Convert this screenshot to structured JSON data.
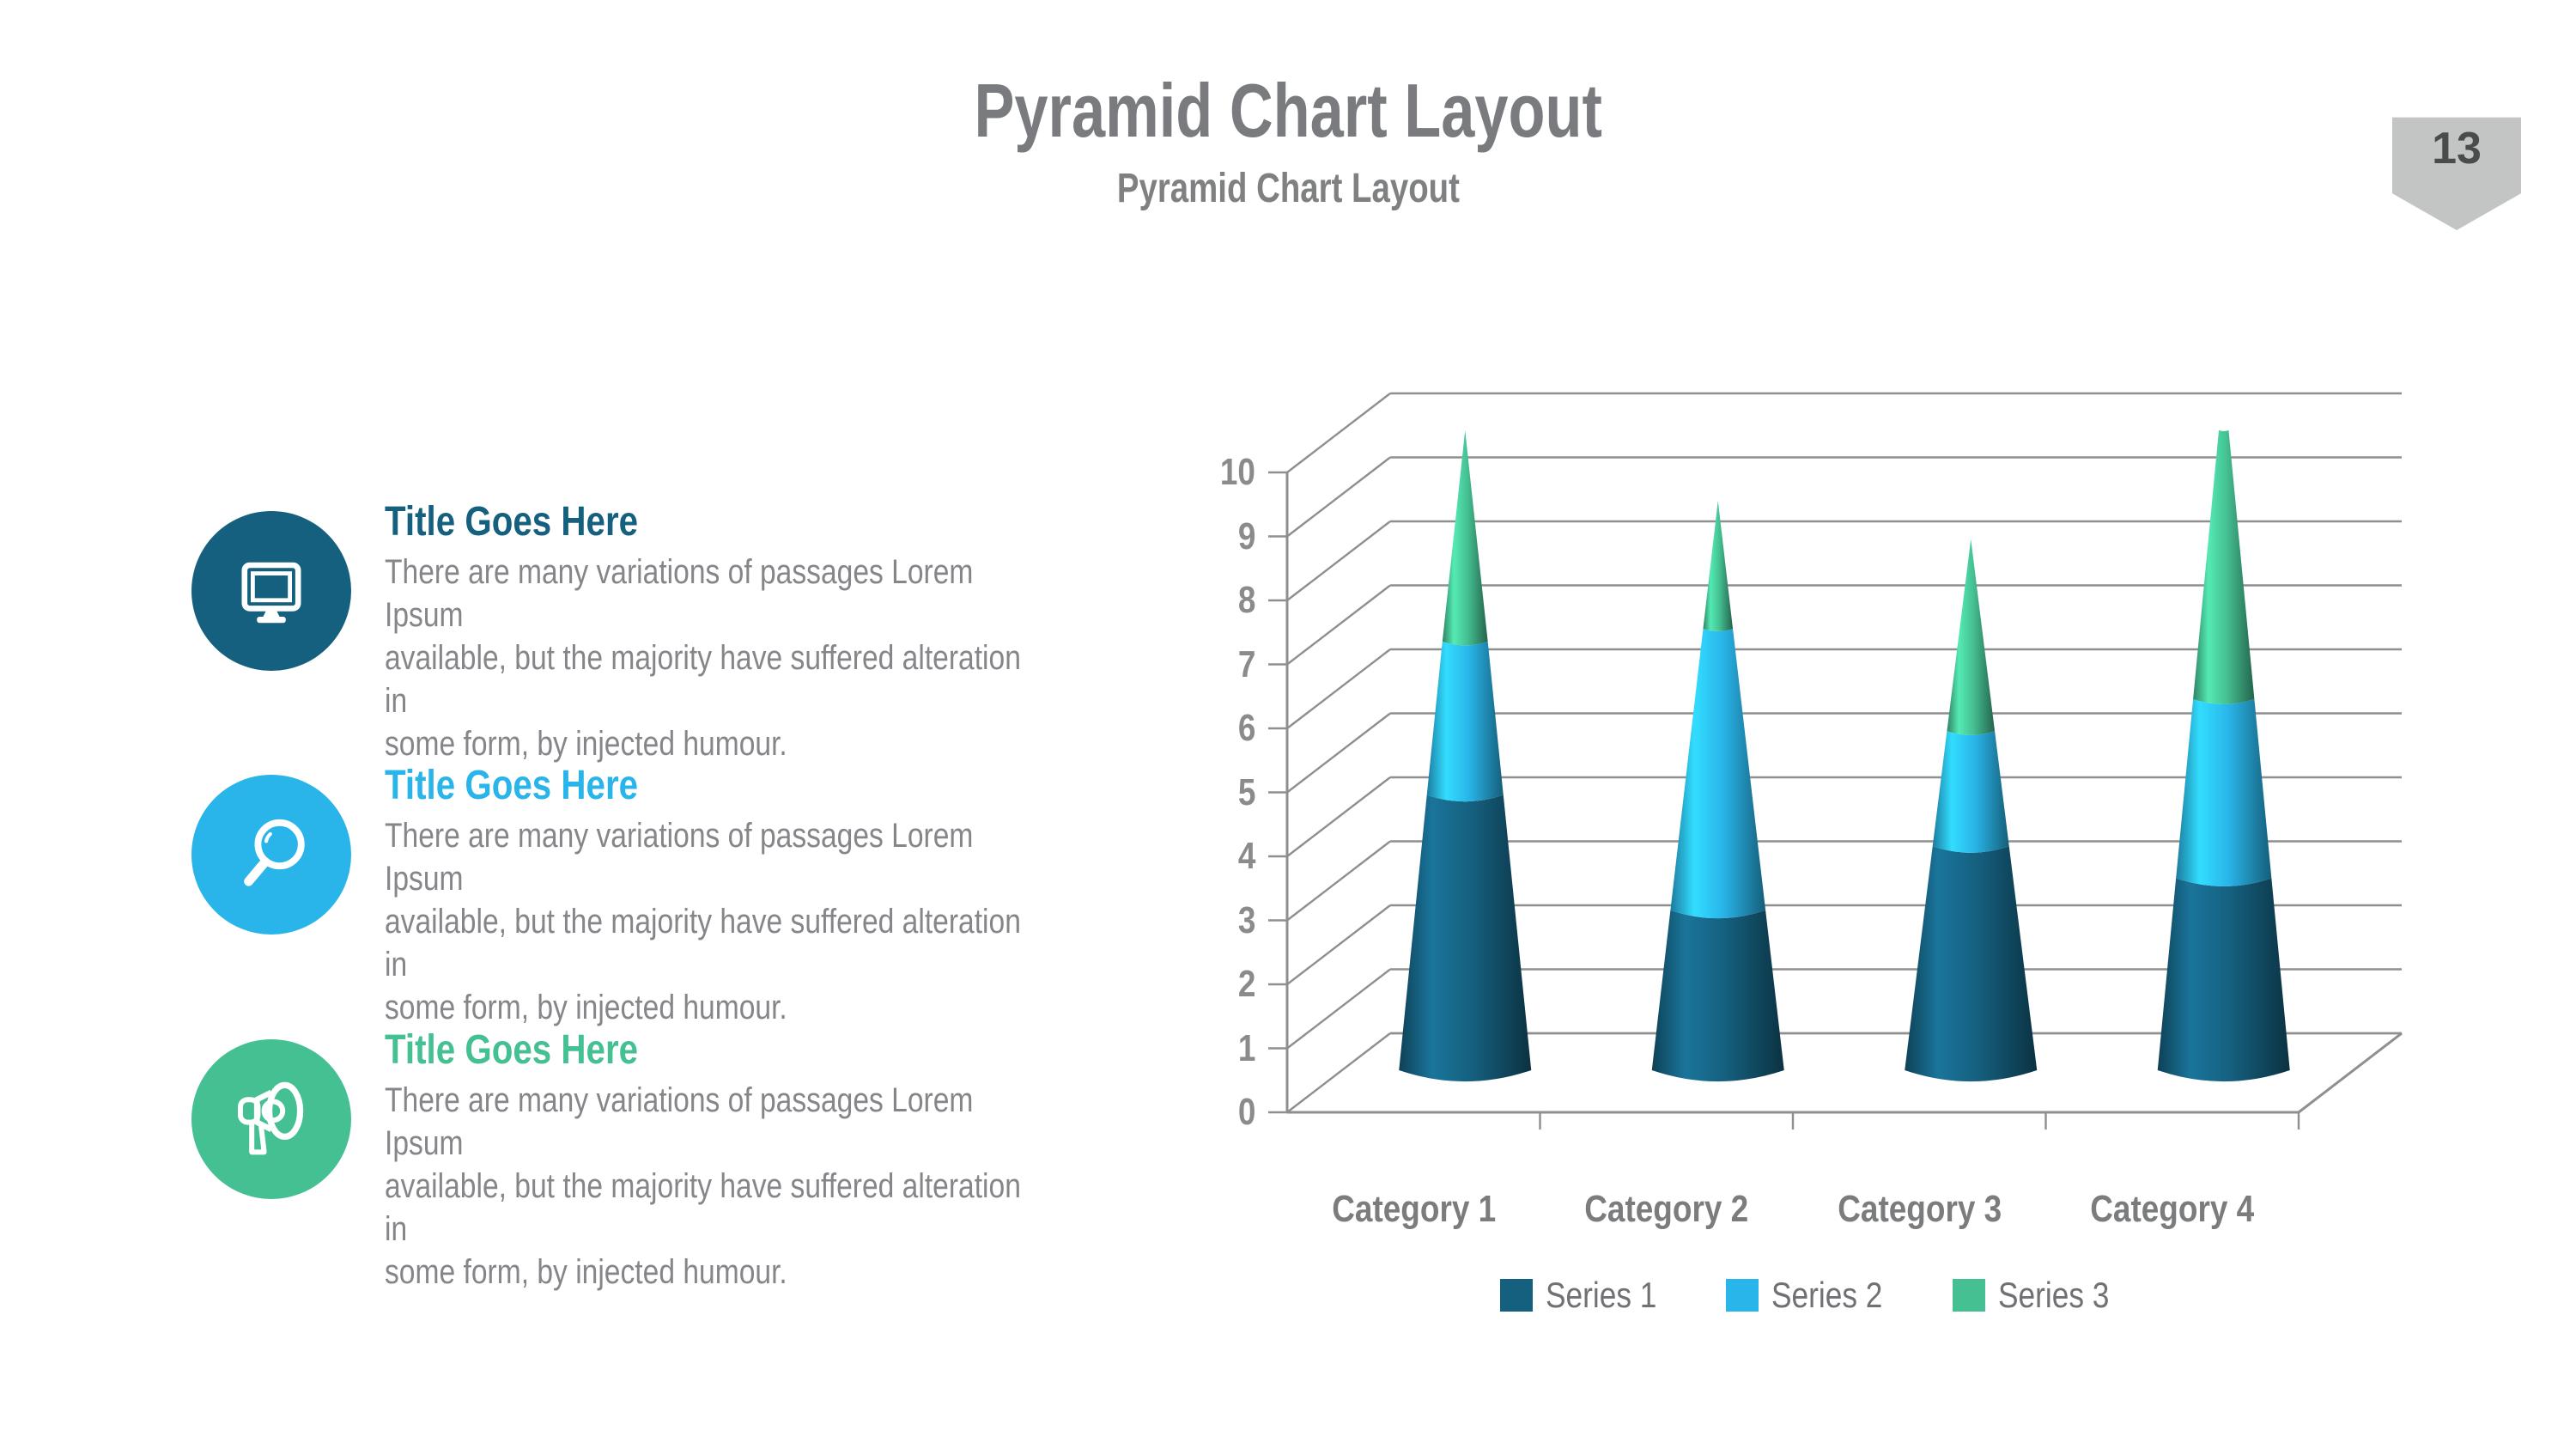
{
  "slide": {
    "title": "Pyramid Chart Layout",
    "subtitle": "Pyramid Chart Layout",
    "page_number": "13"
  },
  "items": [
    {
      "icon": "monitor",
      "color": "#15607f",
      "title": "Title Goes Here",
      "body_lines": [
        "There are many variations of passages Lorem Ipsum",
        "available, but the majority have suffered alteration in",
        "some form, by injected humour."
      ]
    },
    {
      "icon": "magnifier",
      "color": "#29b5e9",
      "title": "Title Goes Here",
      "body_lines": [
        "There are many variations of passages Lorem Ipsum",
        "available, but the majority have suffered alteration in",
        "some form, by injected humour."
      ]
    },
    {
      "icon": "megaphone",
      "color": "#45c093",
      "title": "Title Goes Here",
      "body_lines": [
        "There are many variations of passages Lorem Ipsum",
        "available, but the majority have suffered alteration in",
        "some form, by injected humour."
      ]
    }
  ],
  "chart_data": {
    "type": "bar",
    "variant": "3d-stacked-cone",
    "title": "",
    "xlabel": "",
    "ylabel": "",
    "categories": [
      "Category 1",
      "Category 2",
      "Category 3",
      "Category 4"
    ],
    "series": [
      {
        "name": "Series 1",
        "color": "#15607f",
        "values": [
          4.3,
          2.5,
          3.5,
          3.0
        ]
      },
      {
        "name": "Series 2",
        "color": "#29b5e9",
        "values": [
          2.4,
          4.4,
          1.8,
          2.8
        ]
      },
      {
        "name": "Series 3",
        "color": "#45c093",
        "values": [
          3.5,
          2.0,
          3.0,
          5.0
        ]
      }
    ],
    "ylim": [
      0,
      10
    ],
    "ytick_step": 1,
    "yticks": [
      0,
      1,
      2,
      3,
      4,
      5,
      6,
      7,
      8,
      9,
      10
    ],
    "grid": true,
    "legend_position": "bottom",
    "gridline_color": "#8f8f8f",
    "axis_label_color": "#8b8b8b"
  },
  "palette": {
    "title_gray": "#7a7b7e",
    "body_gray": "#85868a",
    "badge_bg": "#c3c4c4",
    "badge_text": "#4b4b4d"
  }
}
